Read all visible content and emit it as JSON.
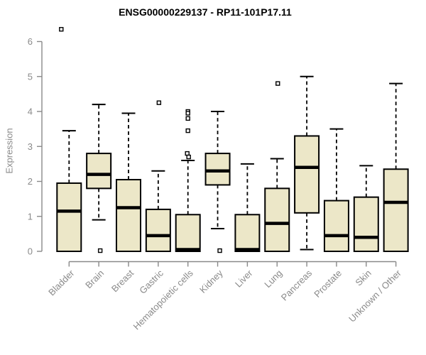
{
  "window": {
    "background": "#ffffff"
  },
  "chart_data": {
    "type": "boxplot",
    "title": "ENSG00000229137 - RP11-101P17.11",
    "ylabel": "Expression",
    "xlabel": "",
    "grid": false,
    "legend_position": "none",
    "y_ticks": [
      0,
      1,
      2,
      3,
      4,
      5,
      6
    ],
    "ylim": [
      0,
      6.45
    ],
    "categories": [
      "Bladder",
      "Brain",
      "Breast",
      "Gastric",
      "Hematopoietic cells",
      "Kidney",
      "Liver",
      "Lung",
      "Pancreas",
      "Prostate",
      "Skin",
      "Unknown / Other"
    ],
    "boxes": [
      {
        "category": "Bladder",
        "q1": 0.0,
        "median": 1.15,
        "q3": 1.95,
        "whisker_low": 0.0,
        "whisker_high": 3.45,
        "outliers": [
          {
            "v": 6.35,
            "dx": -11
          }
        ]
      },
      {
        "category": "Brain",
        "q1": 1.8,
        "median": 2.2,
        "q3": 2.8,
        "whisker_low": 0.9,
        "whisker_high": 4.2,
        "outliers": [
          {
            "v": 0.02,
            "dx": 2
          }
        ]
      },
      {
        "category": "Breast",
        "q1": 0.0,
        "median": 1.25,
        "q3": 2.05,
        "whisker_low": 0.0,
        "whisker_high": 3.95,
        "outliers": []
      },
      {
        "category": "Gastric",
        "q1": 0.0,
        "median": 0.45,
        "q3": 1.2,
        "whisker_low": 0.0,
        "whisker_high": 2.3,
        "outliers": [
          {
            "v": 4.25,
            "dx": 1
          }
        ]
      },
      {
        "category": "Hematopoietic cells",
        "q1": 0.0,
        "median": 0.05,
        "q3": 1.05,
        "whisker_low": 0.0,
        "whisker_high": 2.6,
        "outliers": [
          {
            "v": 4.0,
            "dx": 0
          },
          {
            "v": 3.95,
            "dx": 0
          },
          {
            "v": 3.8,
            "dx": 0
          },
          {
            "v": 3.45,
            "dx": 0
          },
          {
            "v": 2.8,
            "dx": -1
          },
          {
            "v": 2.7,
            "dx": 1
          }
        ]
      },
      {
        "category": "Kidney",
        "q1": 1.9,
        "median": 2.3,
        "q3": 2.8,
        "whisker_low": 0.65,
        "whisker_high": 4.0,
        "outliers": [
          {
            "v": 0.02,
            "dx": 3
          }
        ]
      },
      {
        "category": "Liver",
        "q1": 0.0,
        "median": 0.05,
        "q3": 1.05,
        "whisker_low": 0.0,
        "whisker_high": 2.5,
        "outliers": []
      },
      {
        "category": "Lung",
        "q1": 0.0,
        "median": 0.8,
        "q3": 1.8,
        "whisker_low": 0.0,
        "whisker_high": 2.65,
        "outliers": [
          {
            "v": 4.8,
            "dx": 1
          }
        ]
      },
      {
        "category": "Pancreas",
        "q1": 1.1,
        "median": 2.4,
        "q3": 3.3,
        "whisker_low": 0.05,
        "whisker_high": 5.0,
        "outliers": []
      },
      {
        "category": "Prostate",
        "q1": 0.0,
        "median": 0.45,
        "q3": 1.45,
        "whisker_low": 0.0,
        "whisker_high": 3.5,
        "outliers": []
      },
      {
        "category": "Skin",
        "q1": 0.0,
        "median": 0.4,
        "q3": 1.55,
        "whisker_low": 0.0,
        "whisker_high": 2.45,
        "outliers": []
      },
      {
        "category": "Unknown / Other",
        "q1": 0.0,
        "median": 1.4,
        "q3": 2.35,
        "whisker_low": 0.0,
        "whisker_high": 4.8,
        "outliers": []
      }
    ],
    "colors": {
      "box_fill": "#ece7c8",
      "box_stroke": "#000000",
      "median": "#000000",
      "whisker": "#000000",
      "outlier_stroke": "#000000",
      "outlier_fill": "#ffffff",
      "axis": "#898989",
      "tick_label": "#8a8a8a",
      "title": "#000000"
    }
  }
}
